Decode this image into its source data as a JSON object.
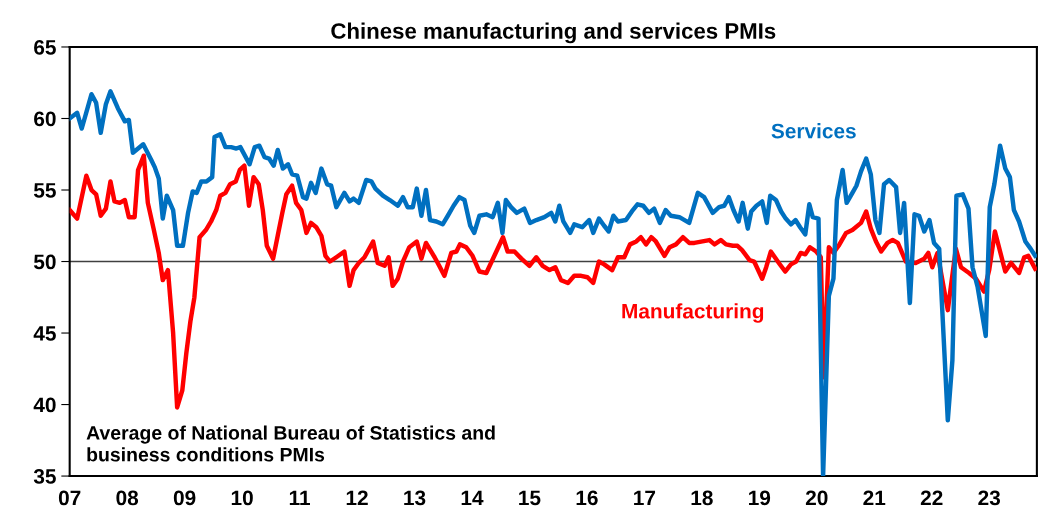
{
  "chart_data": {
    "type": "line",
    "title": "Chinese manufacturing and services PMIs",
    "xlim": [
      2007.0,
      2023.83
    ],
    "ylim": [
      35,
      65
    ],
    "yticks": [
      35,
      40,
      45,
      50,
      55,
      60,
      65
    ],
    "xticks": [
      {
        "value": 2007,
        "label": "07"
      },
      {
        "value": 2008,
        "label": "08"
      },
      {
        "value": 2009,
        "label": "09"
      },
      {
        "value": 2010,
        "label": "10"
      },
      {
        "value": 2011,
        "label": "11"
      },
      {
        "value": 2012,
        "label": "12"
      },
      {
        "value": 2013,
        "label": "13"
      },
      {
        "value": 2014,
        "label": "14"
      },
      {
        "value": 2015,
        "label": "15"
      },
      {
        "value": 2016,
        "label": "16"
      },
      {
        "value": 2017,
        "label": "17"
      },
      {
        "value": 2018,
        "label": "18"
      },
      {
        "value": 2019,
        "label": "19"
      },
      {
        "value": 2020,
        "label": "20"
      },
      {
        "value": 2021,
        "label": "21"
      },
      {
        "value": 2022,
        "label": "22"
      },
      {
        "value": 2023,
        "label": "23"
      }
    ],
    "grid": false,
    "legend": false,
    "marker": "none",
    "line_style": "solid",
    "ref_lines": [
      {
        "axis": "y",
        "value": 50,
        "color": "#404040"
      }
    ],
    "annotations": [
      "Average of National Bureau of Statistics and\nbusiness conditions PMIs"
    ],
    "series": [
      {
        "name": "Services",
        "color": "#0070c0",
        "x": [
          2007.0,
          2007.13,
          2007.21,
          2007.38,
          2007.46,
          2007.54,
          2007.63,
          2007.71,
          2007.84,
          2007.96,
          2008.03,
          2008.1,
          2008.28,
          2008.42,
          2008.48,
          2008.55,
          2008.62,
          2008.69,
          2008.8,
          2008.87,
          2008.97,
          2009.06,
          2009.14,
          2009.21,
          2009.29,
          2009.38,
          2009.48,
          2009.52,
          2009.62,
          2009.71,
          2009.81,
          2009.9,
          2009.97,
          2010.13,
          2010.22,
          2010.3,
          2010.39,
          2010.47,
          2010.55,
          2010.62,
          2010.71,
          2010.8,
          2010.87,
          2010.96,
          2011.06,
          2011.12,
          2011.2,
          2011.28,
          2011.38,
          2011.48,
          2011.55,
          2011.64,
          2011.78,
          2011.87,
          2011.94,
          2012.03,
          2012.16,
          2012.25,
          2012.32,
          2012.45,
          2012.57,
          2012.71,
          2012.8,
          2012.88,
          2012.97,
          2013.04,
          2013.12,
          2013.2,
          2013.27,
          2013.38,
          2013.49,
          2013.58,
          2013.68,
          2013.78,
          2013.87,
          2013.97,
          2014.04,
          2014.13,
          2014.25,
          2014.36,
          2014.45,
          2014.53,
          2014.59,
          2014.68,
          2014.78,
          2014.91,
          2015.01,
          2015.12,
          2015.26,
          2015.38,
          2015.45,
          2015.52,
          2015.59,
          2015.71,
          2015.78,
          2015.92,
          2016.04,
          2016.11,
          2016.21,
          2016.3,
          2016.38,
          2016.46,
          2016.54,
          2016.68,
          2016.8,
          2016.88,
          2016.98,
          2017.08,
          2017.17,
          2017.27,
          2017.37,
          2017.46,
          2017.61,
          2017.78,
          2017.93,
          2018.04,
          2018.19,
          2018.3,
          2018.39,
          2018.47,
          2018.55,
          2018.64,
          2018.71,
          2018.8,
          2018.86,
          2018.95,
          2019.05,
          2019.13,
          2019.19,
          2019.29,
          2019.38,
          2019.46,
          2019.55,
          2019.63,
          2019.71,
          2019.8,
          2019.87,
          2019.93,
          2020.03,
          2020.11,
          2020.21,
          2020.29,
          2020.35,
          2020.45,
          2020.52,
          2020.62,
          2020.69,
          2020.77,
          2020.86,
          2020.94,
          2021.02,
          2021.09,
          2021.17,
          2021.26,
          2021.38,
          2021.45,
          2021.52,
          2021.62,
          2021.7,
          2021.78,
          2021.87,
          2021.96,
          2022.04,
          2022.13,
          2022.28,
          2022.36,
          2022.43,
          2022.54,
          2022.64,
          2022.71,
          2022.8,
          2022.94,
          2023.01,
          2023.09,
          2023.19,
          2023.28,
          2023.36,
          2023.43,
          2023.52,
          2023.63,
          2023.72,
          2023.8
        ],
        "values": [
          60.0,
          60.4,
          59.3,
          61.7,
          61.1,
          59.0,
          61.0,
          61.9,
          60.7,
          59.8,
          59.9,
          57.6,
          58.2,
          57.1,
          56.6,
          55.8,
          53.0,
          54.6,
          53.6,
          51.1,
          51.1,
          53.4,
          54.9,
          54.8,
          55.6,
          55.6,
          55.9,
          58.7,
          58.9,
          58.0,
          58.0,
          57.9,
          58.0,
          56.8,
          58.0,
          58.1,
          57.3,
          57.2,
          56.7,
          57.8,
          56.5,
          56.8,
          56.1,
          56.0,
          54.5,
          54.4,
          55.5,
          54.8,
          56.5,
          55.4,
          55.3,
          53.8,
          54.8,
          54.2,
          54.4,
          54.1,
          55.7,
          55.6,
          55.1,
          54.6,
          54.3,
          53.9,
          54.5,
          53.8,
          53.8,
          55.1,
          53.2,
          55.0,
          52.9,
          52.8,
          52.6,
          53.2,
          53.9,
          54.5,
          54.3,
          52.5,
          52.0,
          53.2,
          53.3,
          53.1,
          54.1,
          52.0,
          54.3,
          53.8,
          53.4,
          53.7,
          52.7,
          52.9,
          53.1,
          53.4,
          52.8,
          53.9,
          52.8,
          52.0,
          52.6,
          52.4,
          52.9,
          52.0,
          53.0,
          52.5,
          52.1,
          53.2,
          52.8,
          52.9,
          53.6,
          54.0,
          53.9,
          53.4,
          53.7,
          52.7,
          53.6,
          53.2,
          53.1,
          52.7,
          54.8,
          54.5,
          53.4,
          53.8,
          53.9,
          54.5,
          53.6,
          52.8,
          54.1,
          52.3,
          53.5,
          53.9,
          54.2,
          52.7,
          54.6,
          54.3,
          53.5,
          53.0,
          52.6,
          52.9,
          52.4,
          51.9,
          54.0,
          53.1,
          53.0,
          35.0,
          47.6,
          48.8,
          54.3,
          56.4,
          54.1,
          54.8,
          55.3,
          56.3,
          57.2,
          56.1,
          52.9,
          52.0,
          55.4,
          55.7,
          55.2,
          52.0,
          54.1,
          47.1,
          53.3,
          53.2,
          52.1,
          52.9,
          51.3,
          50.9,
          38.9,
          43.1,
          54.6,
          54.7,
          53.7,
          49.6,
          48.2,
          44.8,
          53.8,
          55.4,
          58.1,
          56.5,
          55.9,
          53.6,
          52.8,
          51.4,
          50.9,
          50.4
        ]
      },
      {
        "name": "Manufacturing",
        "color": "#ff0000",
        "x": [
          2007.0,
          2007.13,
          2007.29,
          2007.38,
          2007.46,
          2007.54,
          2007.63,
          2007.71,
          2007.78,
          2007.87,
          2007.96,
          2008.03,
          2008.13,
          2008.19,
          2008.29,
          2008.36,
          2008.46,
          2008.55,
          2008.62,
          2008.71,
          2008.8,
          2008.87,
          2008.96,
          2009.03,
          2009.1,
          2009.17,
          2009.26,
          2009.37,
          2009.46,
          2009.55,
          2009.62,
          2009.71,
          2009.79,
          2009.89,
          2009.96,
          2010.04,
          2010.12,
          2010.2,
          2010.29,
          2010.36,
          2010.43,
          2010.54,
          2010.62,
          2010.7,
          2010.77,
          2010.87,
          2010.94,
          2011.03,
          2011.12,
          2011.2,
          2011.29,
          2011.38,
          2011.45,
          2011.53,
          2011.64,
          2011.78,
          2011.87,
          2011.94,
          2012.03,
          2012.13,
          2012.28,
          2012.36,
          2012.48,
          2012.55,
          2012.62,
          2012.71,
          2012.8,
          2012.91,
          2013.04,
          2013.12,
          2013.2,
          2013.35,
          2013.43,
          2013.52,
          2013.64,
          2013.73,
          2013.79,
          2013.9,
          2014.01,
          2014.13,
          2014.25,
          2014.39,
          2014.54,
          2014.62,
          2014.74,
          2014.86,
          2015.0,
          2015.12,
          2015.23,
          2015.35,
          2015.45,
          2015.55,
          2015.67,
          2015.78,
          2015.9,
          2016.01,
          2016.11,
          2016.21,
          2016.3,
          2016.44,
          2016.54,
          2016.65,
          2016.75,
          2016.86,
          2016.94,
          2017.03,
          2017.12,
          2017.2,
          2017.35,
          2017.44,
          2017.55,
          2017.67,
          2017.78,
          2017.87,
          2018.13,
          2018.22,
          2018.33,
          2018.42,
          2018.54,
          2018.62,
          2018.7,
          2018.83,
          2018.91,
          2019.05,
          2019.12,
          2019.2,
          2019.34,
          2019.45,
          2019.55,
          2019.64,
          2019.72,
          2019.8,
          2019.88,
          2019.99,
          2020.07,
          2020.12,
          2020.21,
          2020.29,
          2020.38,
          2020.51,
          2020.62,
          2020.77,
          2020.86,
          2020.94,
          2021.03,
          2021.12,
          2021.23,
          2021.32,
          2021.41,
          2021.55,
          2021.72,
          2021.87,
          2021.94,
          2022.01,
          2022.1,
          2022.28,
          2022.42,
          2022.51,
          2022.65,
          2022.77,
          2022.91,
          2023.0,
          2023.1,
          2023.28,
          2023.38,
          2023.52,
          2023.61,
          2023.68,
          2023.8
        ],
        "values": [
          53.6,
          53.0,
          56.0,
          55.0,
          54.7,
          53.2,
          53.7,
          55.6,
          54.2,
          54.1,
          54.3,
          53.1,
          53.1,
          56.4,
          57.4,
          54.1,
          52.3,
          50.6,
          48.7,
          49.4,
          45.0,
          39.8,
          41.0,
          43.6,
          45.8,
          47.5,
          51.7,
          52.2,
          52.8,
          53.6,
          54.6,
          54.8,
          55.4,
          55.6,
          56.4,
          56.7,
          53.9,
          55.9,
          55.4,
          53.6,
          51.1,
          50.2,
          51.8,
          53.4,
          54.7,
          55.3,
          54.1,
          53.6,
          52.0,
          52.7,
          52.4,
          51.8,
          50.4,
          50.0,
          50.3,
          50.7,
          48.3,
          49.4,
          49.9,
          50.3,
          51.4,
          49.9,
          49.7,
          50.3,
          48.3,
          48.8,
          50.0,
          51.0,
          51.4,
          50.2,
          51.3,
          50.3,
          49.7,
          49.0,
          50.6,
          50.7,
          51.2,
          51.0,
          50.4,
          49.3,
          49.2,
          50.4,
          51.7,
          50.7,
          50.7,
          50.2,
          49.7,
          50.3,
          49.7,
          49.4,
          49.6,
          48.7,
          48.5,
          49.0,
          49.0,
          48.9,
          48.5,
          50.0,
          49.8,
          49.4,
          50.3,
          50.3,
          51.2,
          51.4,
          51.7,
          51.2,
          51.7,
          51.4,
          50.4,
          51.0,
          51.2,
          51.7,
          51.3,
          51.3,
          51.5,
          51.2,
          51.5,
          51.2,
          51.1,
          51.1,
          50.8,
          50.1,
          50.0,
          48.8,
          49.6,
          50.7,
          49.9,
          49.3,
          49.8,
          50.0,
          50.6,
          50.5,
          51.0,
          50.7,
          50.3,
          41.9,
          51.0,
          50.6,
          51.1,
          52.0,
          52.2,
          52.7,
          53.5,
          52.3,
          51.4,
          50.7,
          51.3,
          51.5,
          51.3,
          50.0,
          49.9,
          50.2,
          50.6,
          49.6,
          50.6,
          46.6,
          50.9,
          49.6,
          49.2,
          48.8,
          47.9,
          49.4,
          52.1,
          49.3,
          49.9,
          49.2,
          50.3,
          50.4,
          49.5
        ]
      }
    ]
  }
}
